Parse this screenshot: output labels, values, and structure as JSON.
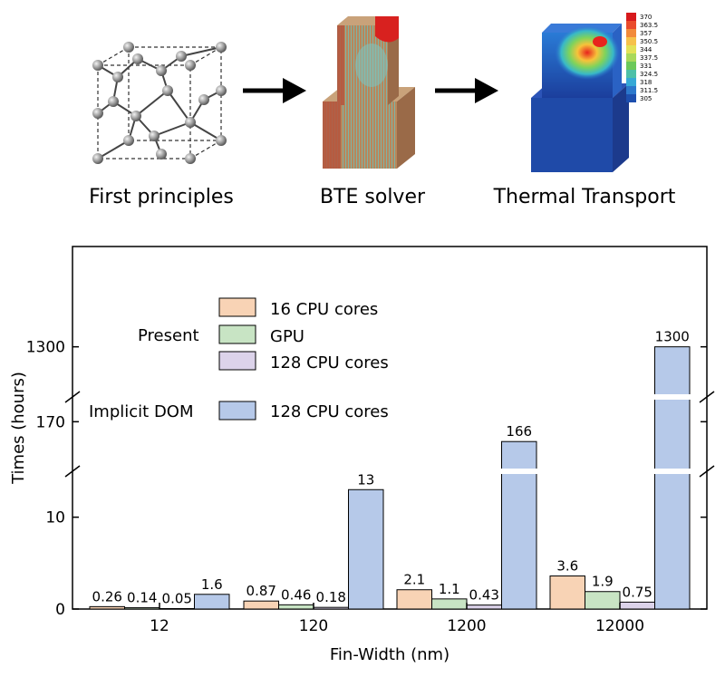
{
  "pipeline": {
    "steps": [
      {
        "label": "First principles",
        "icon": "atom-lattice-icon"
      },
      {
        "label": "BTE solver",
        "icon": "finfet-mesh-icon"
      },
      {
        "label": "Thermal Transport",
        "icon": "temperature-field-icon"
      }
    ],
    "arrow_icon": "right-arrow-icon",
    "colorbar_ticks": [
      "370",
      "363.5",
      "357",
      "350.5",
      "344",
      "337.5",
      "331",
      "324.5",
      "318",
      "311.5",
      "305"
    ]
  },
  "chart_data": {
    "type": "bar",
    "xlabel": "Fin-Width (nm)",
    "ylabel": "Times (hours)",
    "categories": [
      "12",
      "120",
      "1200",
      "12000"
    ],
    "axis_break": true,
    "segments": [
      {
        "range": [
          0,
          15
        ],
        "ticks": [
          {
            "value": 0,
            "label": "0"
          },
          {
            "value": 10,
            "label": "10"
          }
        ]
      },
      {
        "range": [
          160,
          175
        ],
        "ticks": [
          {
            "value": 170,
            "label": "170"
          }
        ]
      },
      {
        "range": [
          1250,
          1400
        ],
        "ticks": [
          {
            "value": 1300,
            "label": "1300"
          }
        ]
      }
    ],
    "legend_groups": [
      {
        "group": "Present",
        "entries": [
          "16 CPU cores",
          "GPU",
          "128 CPU cores"
        ]
      },
      {
        "group": "Implicit DOM",
        "entries": [
          "128 CPU cores"
        ]
      }
    ],
    "series": [
      {
        "group": "Present",
        "name": "16 CPU cores",
        "color": "#f8d3b5",
        "values": [
          0.26,
          0.87,
          2.1,
          3.6
        ],
        "labels": [
          "0.26",
          "0.87",
          "2.1",
          "3.6"
        ]
      },
      {
        "group": "Present",
        "name": "GPU",
        "color": "#c8e4c4",
        "values": [
          0.14,
          0.46,
          1.1,
          1.9
        ],
        "labels": [
          "0.14",
          "0.46",
          "1.1",
          "1.9"
        ]
      },
      {
        "group": "Present",
        "name": "128 CPU cores",
        "color": "#dcd3ea",
        "values": [
          0.05,
          0.18,
          0.43,
          0.75
        ],
        "labels": [
          "0.05",
          "0.18",
          "0.43",
          "0.75"
        ]
      },
      {
        "group": "Implicit DOM",
        "name": "128 CPU cores",
        "color": "#b6c9e9",
        "values": [
          1.6,
          13,
          166,
          1300
        ],
        "labels": [
          "1.6",
          "13",
          "166",
          "1300"
        ]
      }
    ],
    "grid": false
  }
}
